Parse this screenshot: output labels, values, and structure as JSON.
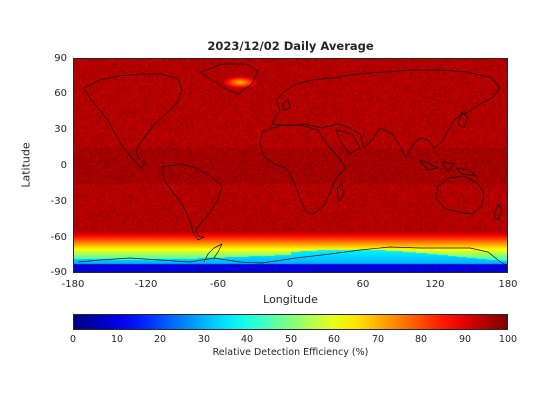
{
  "title": "2023/12/02 Daily Average",
  "xlabel": "Longitude",
  "ylabel": "Latitude",
  "x_ticks": [
    "-180",
    "-120",
    "-60",
    "0",
    "60",
    "120",
    "180"
  ],
  "y_ticks": [
    "90",
    "60",
    "30",
    "0",
    "-30",
    "-60",
    "-90"
  ],
  "colorbar": {
    "label": "Relative Detection Efficiency (%)",
    "ticks": [
      "0",
      "10",
      "20",
      "30",
      "40",
      "50",
      "60",
      "70",
      "80",
      "90",
      "100"
    ],
    "range": [
      0,
      100
    ],
    "colormap": "jet"
  },
  "map": {
    "projection": "equirectangular",
    "lon_range": [
      -180,
      180
    ],
    "lat_range": [
      -90,
      90
    ],
    "background_value": 95,
    "features": [
      "Greenland hotspot (~65-75 %)",
      "Antarctica low efficiency (~0-40 %)",
      "Southern Ocean gradient (~70-85 %)"
    ]
  },
  "chart_data": {
    "type": "heatmap",
    "title": "2023/12/02 Daily Average",
    "xlabel": "Longitude",
    "ylabel": "Latitude",
    "xlim": [
      -180,
      180
    ],
    "ylim": [
      -90,
      90
    ],
    "zlim": [
      0,
      100
    ],
    "zlabel": "Relative Detection Efficiency (%)"
  }
}
